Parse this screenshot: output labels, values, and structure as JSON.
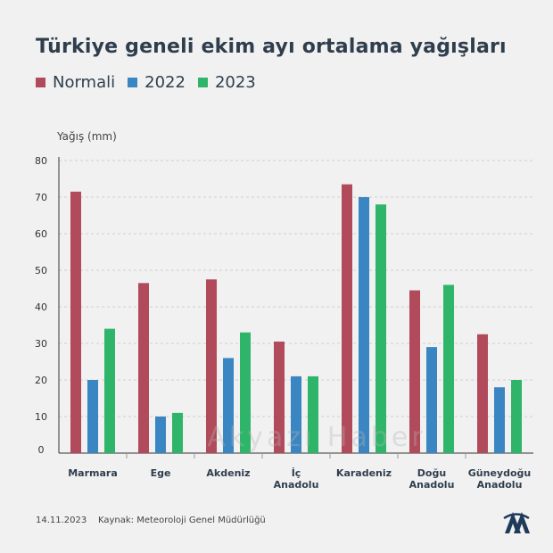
{
  "title": "Türkiye geneli ekim ayı ortalama yağışları",
  "footer": {
    "date": "14.11.2023",
    "source": "Kaynak: Meteoroloji Genel Müdürlüğü"
  },
  "watermark": "Akyazı Haber",
  "logo": "aa-logo-icon",
  "colors": {
    "Normali": "#b14b5c",
    "2022": "#3a86c2",
    "2023": "#2fb56a"
  },
  "chart_data": {
    "type": "bar",
    "title": "Türkiye geneli ekim ayı ortalama yağışları",
    "ylabel": "Yağış (mm)",
    "xlabel": "",
    "ylim": [
      0,
      80
    ],
    "yticks": [
      "0",
      "10",
      "20",
      "30",
      "40",
      "50",
      "60",
      "70",
      "80"
    ],
    "grid": true,
    "legend_position": "top-left",
    "categories": [
      [
        "Marmara"
      ],
      [
        "Ege"
      ],
      [
        "Akdeniz"
      ],
      [
        "İç",
        "Anadolu"
      ],
      [
        "Karadeniz"
      ],
      [
        "Doğu",
        "Anadolu"
      ],
      [
        "Güneydoğu",
        "Anadolu"
      ]
    ],
    "series": [
      {
        "name": "Normali",
        "values": [
          71.5,
          46.5,
          47.5,
          30.5,
          73.5,
          44.5,
          32.5
        ]
      },
      {
        "name": "2022",
        "values": [
          20,
          10,
          26,
          21,
          70,
          29,
          18
        ]
      },
      {
        "name": "2023",
        "values": [
          34,
          11,
          33,
          21,
          68,
          46,
          20
        ]
      }
    ]
  }
}
